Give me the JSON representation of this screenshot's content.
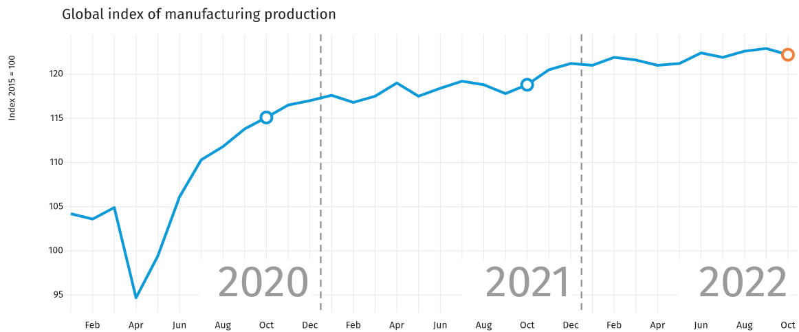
{
  "chart_data": {
    "type": "line",
    "title": "Global index of manufacturing production",
    "y_label": "Index 2015 = 100",
    "categories": [
      null,
      "Feb",
      null,
      "Apr",
      null,
      "Jun",
      null,
      "Aug",
      null,
      "Oct",
      null,
      "Dec",
      null,
      "Feb",
      null,
      "Apr",
      null,
      "Jun",
      null,
      "Aug",
      null,
      "Oct",
      null,
      "Dec",
      null,
      "Feb",
      null,
      "Apr",
      null,
      "Jun",
      null,
      "Aug",
      null,
      "Oct"
    ],
    "series": [
      {
        "name": "Global index",
        "color": "#0e9ad7",
        "values": [
          104.2,
          103.6,
          104.9,
          94.7,
          99.4,
          106.1,
          110.3,
          111.8,
          113.8,
          115.1,
          116.5,
          117.0,
          117.6,
          116.8,
          117.5,
          119.0,
          117.5,
          118.4,
          119.2,
          118.8,
          117.8,
          118.8,
          120.5,
          121.2,
          121.0,
          121.9,
          121.6,
          121.0,
          121.2,
          122.4,
          121.9,
          122.6,
          122.9,
          122.2
        ]
      }
    ],
    "highlight_points": [
      9,
      21,
      33
    ],
    "highlight_colors": [
      "#0e9ad7",
      "#0e9ad7",
      "#f07f3c"
    ],
    "year_labels": [
      "2020",
      "2021",
      "2022"
    ],
    "ylim": [
      93,
      124.5
    ],
    "yticks": [
      95,
      100,
      105,
      110,
      115,
      120
    ],
    "grid": true
  }
}
